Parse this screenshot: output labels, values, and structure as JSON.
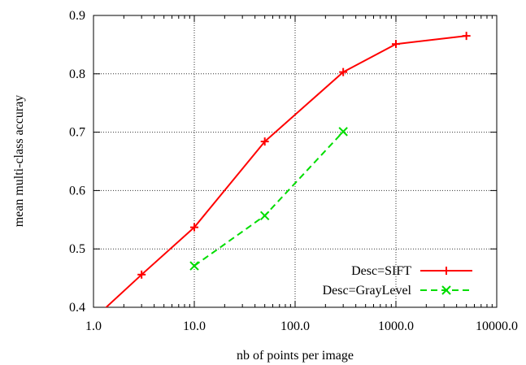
{
  "chart_data": {
    "type": "line",
    "xlabel": "nb of points per image",
    "ylabel": "mean multi-class accuray",
    "x_scale": "log",
    "xlim": [
      1.0,
      10000.0
    ],
    "ylim": [
      0.4,
      0.9
    ],
    "x_ticks": [
      1.0,
      10.0,
      100.0,
      1000.0,
      10000.0
    ],
    "x_tick_labels": [
      "1.0",
      "10.0",
      "100.0",
      "1000.0",
      "10000.0"
    ],
    "y_ticks": [
      0.4,
      0.5,
      0.6,
      0.7,
      0.8,
      0.9
    ],
    "y_tick_labels": [
      "0.4",
      "0.5",
      "0.6",
      "0.7",
      "0.8",
      "0.9"
    ],
    "grid": true,
    "legend_position": "bottom-right",
    "series": [
      {
        "name": "Desc=SIFT",
        "color": "#ff0000",
        "line_style": "solid",
        "marker": "plus",
        "x": [
          1.0,
          3.0,
          10.0,
          50.0,
          300.0,
          1000.0,
          5000.0
        ],
        "y": [
          0.38,
          0.456,
          0.537,
          0.684,
          0.803,
          0.851,
          0.865
        ]
      },
      {
        "name": "Desc=GrayLevel",
        "color": "#00dd00",
        "line_style": "dashed",
        "marker": "cross",
        "x": [
          10.0,
          50.0,
          300.0
        ],
        "y": [
          0.471,
          0.557,
          0.701
        ]
      }
    ]
  }
}
